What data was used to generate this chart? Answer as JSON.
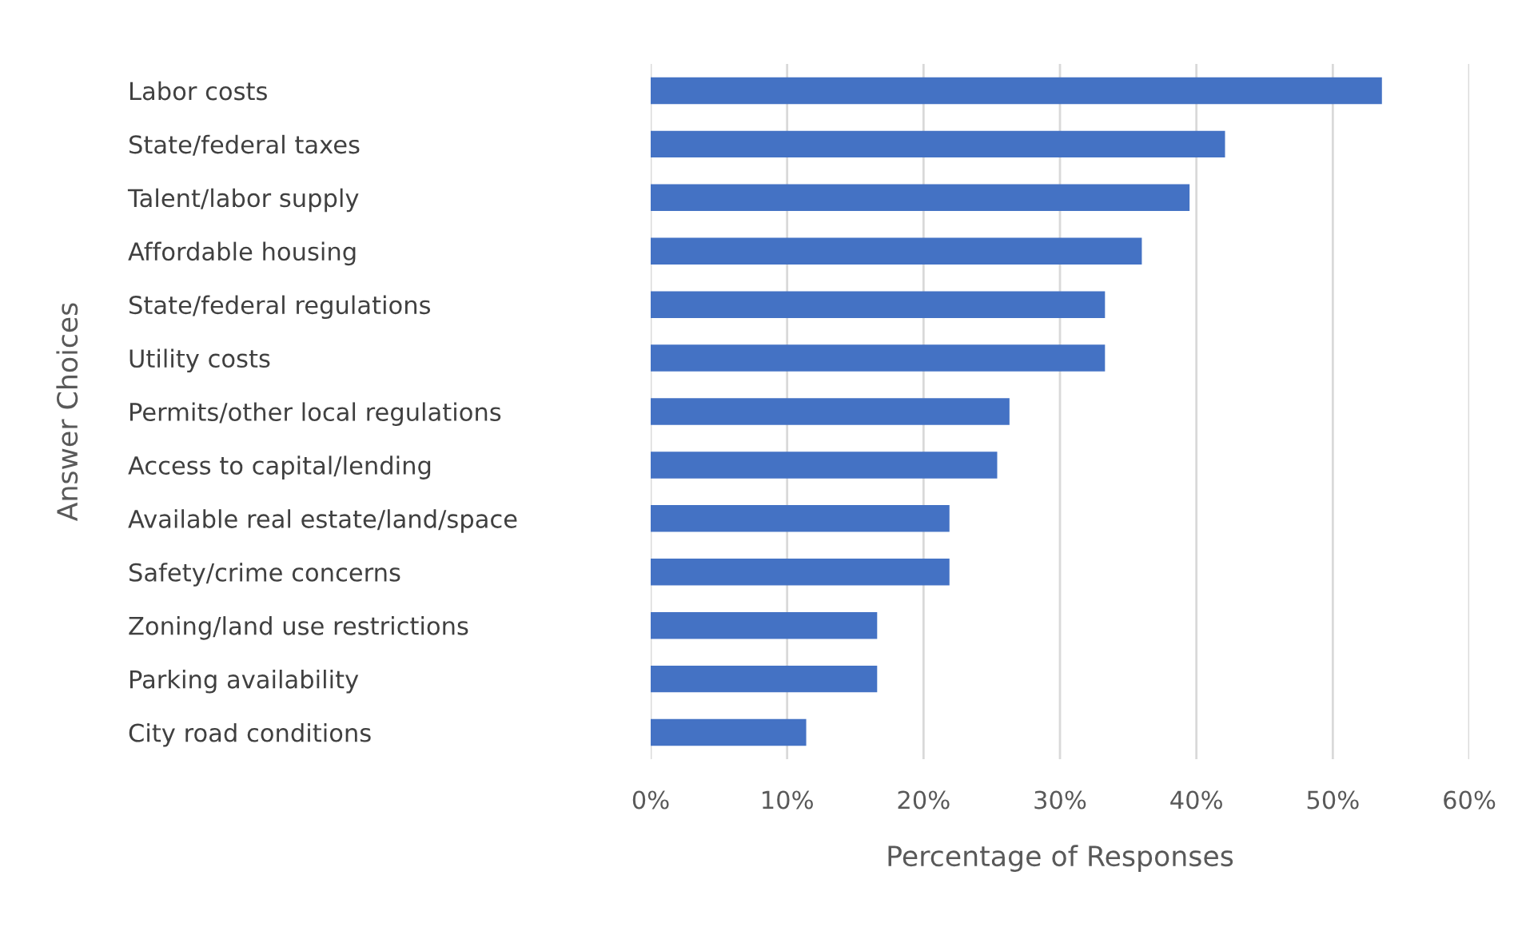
{
  "chart_data": {
    "type": "bar",
    "orientation": "horizontal",
    "xlabel": "Percentage of Responses",
    "ylabel": "Answer Choices",
    "categories": [
      "Labor costs",
      "State/federal taxes",
      "Talent/labor supply",
      "Affordable housing",
      "State/federal regulations",
      "Utility costs",
      "Permits/other local regulations",
      "Access to capital/lending",
      "Available real estate/land/space",
      "Safety/crime concerns",
      "Zoning/land use restrictions",
      "Parking availability",
      "City road conditions"
    ],
    "values": [
      53.6,
      42.1,
      39.5,
      36.0,
      33.3,
      33.3,
      26.3,
      25.4,
      21.9,
      21.9,
      16.6,
      16.6,
      11.4
    ],
    "color": "#4472c4",
    "xlim": [
      0,
      60
    ],
    "xticks": [
      {
        "value": 0,
        "label": "0%"
      },
      {
        "value": 10,
        "label": "10%"
      },
      {
        "value": 20,
        "label": "20%"
      },
      {
        "value": 30,
        "label": "30%"
      },
      {
        "value": 40,
        "label": "40%"
      },
      {
        "value": 50,
        "label": "50%"
      },
      {
        "value": 60,
        "label": "60%"
      }
    ],
    "grid": "x"
  }
}
